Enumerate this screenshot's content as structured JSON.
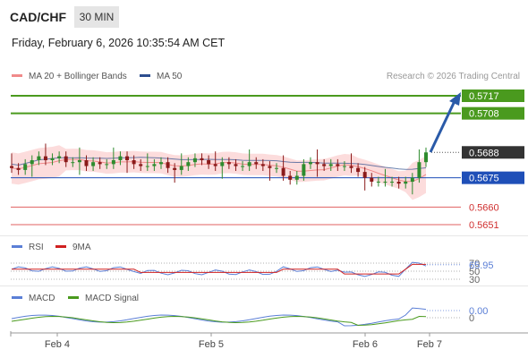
{
  "header": {
    "symbol": "CAD/CHF",
    "timeframe": "30 MIN",
    "datetime": "Friday, February 6, 2026 10:35:54 AM CET"
  },
  "legend": {
    "bollinger_label": "MA 20 + Bollinger Bands",
    "ma50_label": "MA 50",
    "research": "Research © 2026 Trading Central"
  },
  "rsi_panel": {
    "label_rsi": "RSI",
    "label_ma": "9MA",
    "value": "65.95",
    "ticks": [
      "70",
      "50",
      "30"
    ]
  },
  "macd_panel": {
    "label_macd": "MACD",
    "label_signal": "MACD Signal",
    "value": "0.00"
  },
  "x_axis": {
    "labels": [
      "Feb 4",
      "Feb 5",
      "Feb 6",
      "Feb 7"
    ]
  },
  "colors": {
    "candle_up": "#2e8b2e",
    "candle_down": "#8b1a1a",
    "bollinger_fill": "#fbd6d6",
    "ma20": "#f08a8a",
    "ma50": "#2d4e8f",
    "resistance": "#4a9a1e",
    "support_blue": "#1f4fb8",
    "support_red": "#e06060",
    "rsi": "#5b7fd6",
    "rsi_ma": "#d02020",
    "macd": "#5b7fd6",
    "macd_signal": "#4a9a1e",
    "arrow": "#2a5aa8"
  },
  "chart_data": {
    "type": "line",
    "price_levels": [
      {
        "value": "0.5717",
        "kind": "resistance"
      },
      {
        "value": "0.5708",
        "kind": "resistance"
      },
      {
        "value": "0.5688",
        "kind": "current"
      },
      {
        "value": "0.5675",
        "kind": "pivot"
      },
      {
        "value": "0.5660",
        "kind": "support"
      },
      {
        "value": "0.5651",
        "kind": "support"
      }
    ],
    "y_range": [
      0.5646,
      0.5724
    ],
    "x_labels": [
      "Feb 4",
      "Feb 5",
      "Feb 6",
      "Feb 7"
    ],
    "price_approx": [
      0.568,
      0.5679,
      0.5682,
      0.5684,
      0.5686,
      0.5684,
      0.5685,
      0.5686,
      0.5683,
      0.5683,
      0.5684,
      0.5681,
      0.5683,
      0.5682,
      0.5682,
      0.5684,
      0.5686,
      0.5684,
      0.5682,
      0.5681,
      0.5681,
      0.5682,
      0.5683,
      0.568,
      0.5679,
      0.5681,
      0.5683,
      0.5685,
      0.5684,
      0.5682,
      0.5681,
      0.5683,
      0.5682,
      0.5681,
      0.5681,
      0.5683,
      0.5682,
      0.5681,
      0.568,
      0.568,
      0.5676,
      0.5674,
      0.5676,
      0.5682,
      0.5683,
      0.5682,
      0.5681,
      0.5682,
      0.5681,
      0.5681,
      0.568,
      0.5678,
      0.5675,
      0.5673,
      0.5673,
      0.5673,
      0.5673,
      0.5672,
      0.5673,
      0.5675,
      0.5683,
      0.5688
    ],
    "rsi": {
      "value": 65.95,
      "levels": [
        70,
        50,
        30
      ]
    },
    "macd": {
      "value": 0.0
    }
  }
}
